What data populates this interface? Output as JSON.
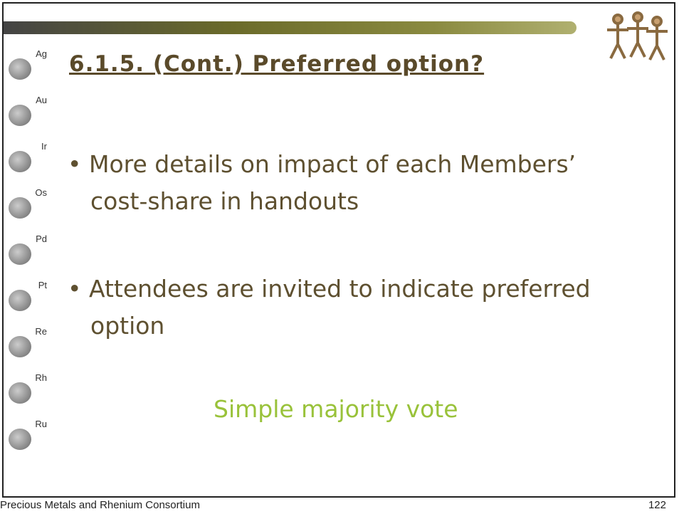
{
  "slide": {
    "title": "6.1.5. (Cont.) Preferred option?",
    "bullets": [
      "More details on impact of each Members’ cost-share in handouts",
      "Attendees are invited to indicate preferred option"
    ],
    "highlight": "Simple majority vote",
    "elements": [
      "Ag",
      "Au",
      "Ir",
      "Os",
      "Pd",
      "Pt",
      "Re",
      "Rh",
      "Ru"
    ]
  },
  "footer": {
    "organization": "Precious Metals and Rhenium Consortium",
    "page_number": "122"
  }
}
